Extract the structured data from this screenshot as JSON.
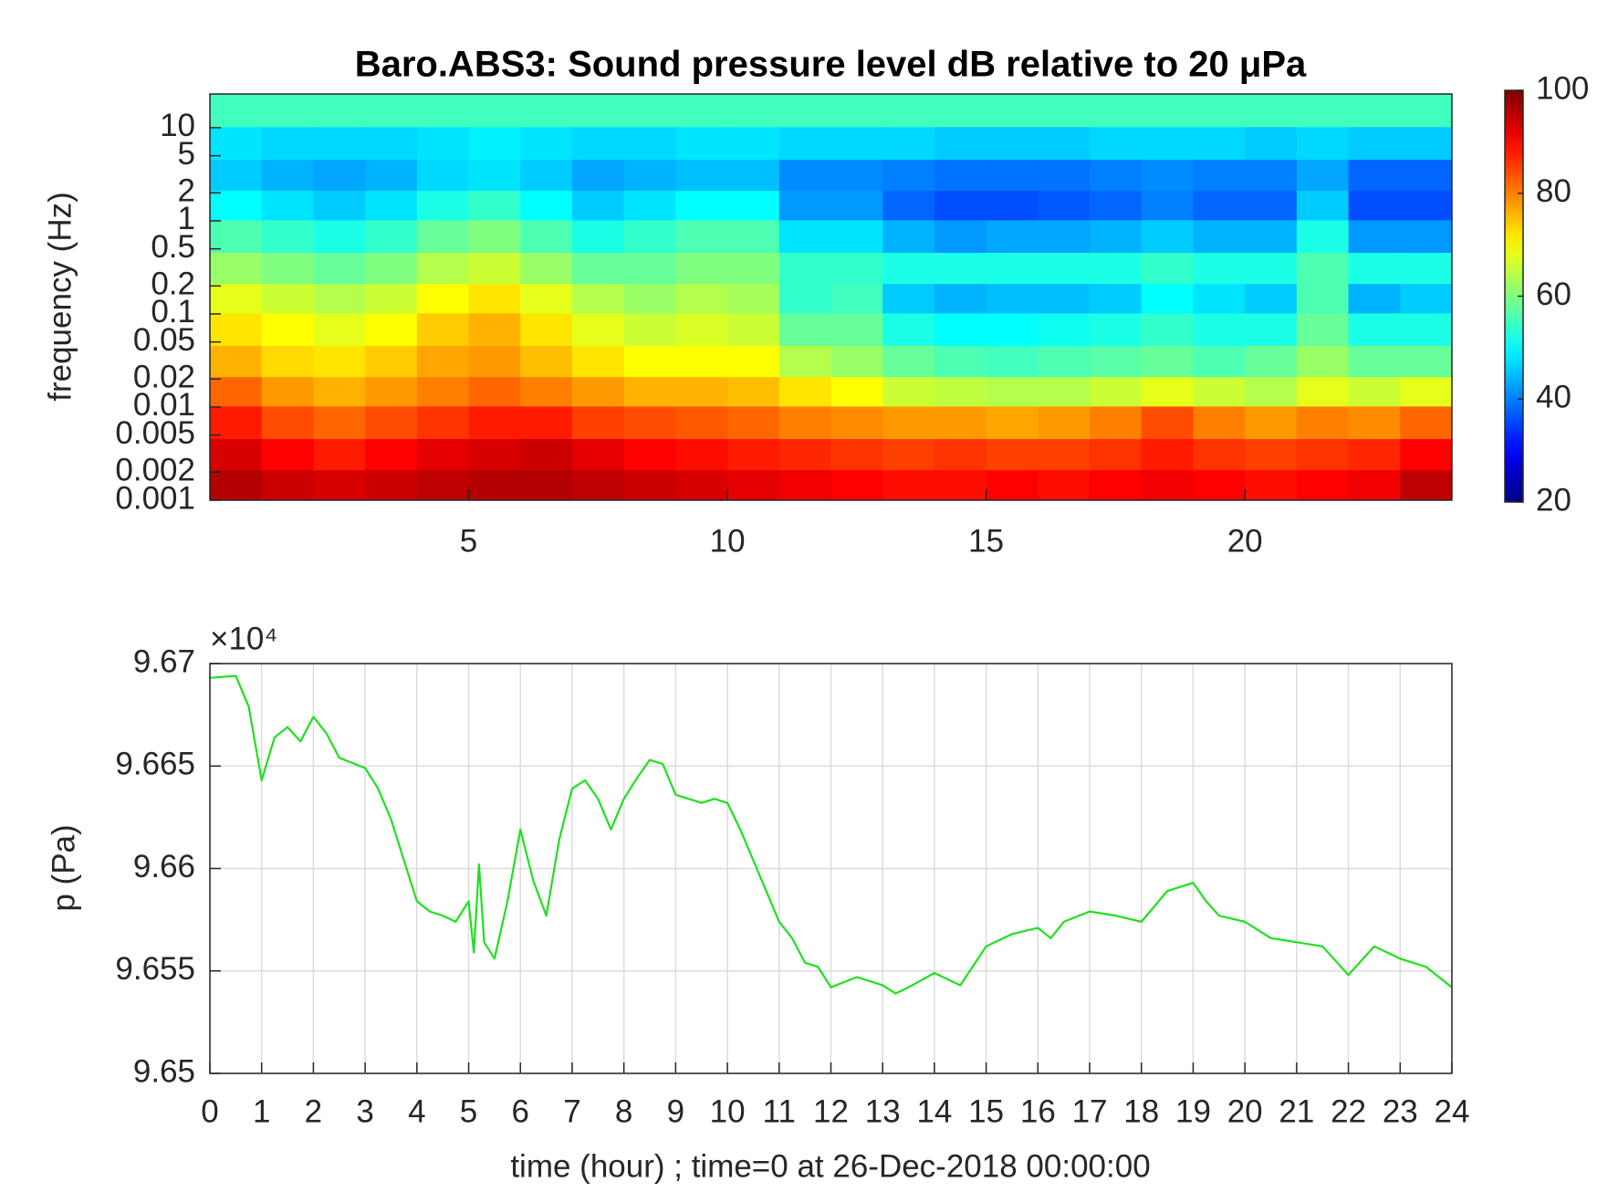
{
  "chart_data": [
    {
      "type": "heatmap",
      "title": "Baro.ABS3: Sound pressure level dB relative to 20 μPa",
      "ylabel": "frequency (Hz)",
      "ylog": true,
      "xlim": [
        0,
        24
      ],
      "xticks": [
        5,
        10,
        15,
        20
      ],
      "ylim": [
        0.001,
        23
      ],
      "yticks": [
        0.001,
        0.002,
        0.005,
        0.01,
        0.02,
        0.05,
        0.1,
        0.2,
        0.5,
        1,
        2,
        5,
        10
      ],
      "colormap": "jet",
      "clim": [
        20,
        100
      ],
      "cticks": [
        20,
        40,
        60,
        80,
        100
      ],
      "x": [
        0.5,
        1.5,
        2.5,
        3.5,
        4.5,
        5.5,
        6.5,
        7.5,
        8.5,
        9.5,
        10.5,
        11.5,
        12.5,
        13.5,
        14.5,
        15.5,
        16.5,
        17.5,
        18.5,
        19.5,
        20.5,
        21.5,
        22.5,
        23.5
      ],
      "y": [
        0.0015,
        0.003,
        0.007,
        0.015,
        0.03,
        0.07,
        0.15,
        0.3,
        0.7,
        1.5,
        3,
        7,
        15
      ],
      "z": [
        [
          96,
          94,
          93,
          94,
          95,
          96,
          96,
          95,
          94,
          93,
          92,
          91,
          90,
          89,
          89,
          90,
          89,
          90,
          91,
          90,
          89,
          90,
          91,
          95
        ],
        [
          93,
          90,
          88,
          90,
          92,
          93,
          94,
          92,
          90,
          89,
          88,
          87,
          86,
          85,
          86,
          85,
          85,
          86,
          88,
          86,
          85,
          86,
          87,
          90
        ],
        [
          88,
          84,
          82,
          84,
          86,
          88,
          88,
          85,
          84,
          83,
          82,
          80,
          79,
          78,
          78,
          77,
          78,
          80,
          84,
          80,
          78,
          80,
          79,
          82
        ],
        [
          82,
          78,
          76,
          78,
          80,
          82,
          80,
          78,
          76,
          76,
          75,
          72,
          70,
          66,
          65,
          64,
          64,
          66,
          68,
          66,
          64,
          68,
          66,
          68
        ],
        [
          76,
          73,
          72,
          74,
          77,
          78,
          75,
          72,
          70,
          70,
          70,
          64,
          62,
          58,
          56,
          55,
          56,
          57,
          58,
          56,
          58,
          62,
          58,
          58
        ],
        [
          72,
          70,
          68,
          70,
          74,
          76,
          72,
          68,
          66,
          67,
          66,
          58,
          58,
          52,
          50,
          50,
          51,
          52,
          54,
          52,
          52,
          58,
          52,
          52
        ],
        [
          68,
          66,
          64,
          66,
          70,
          72,
          68,
          64,
          62,
          64,
          63,
          54,
          55,
          46,
          44,
          45,
          45,
          46,
          50,
          48,
          46,
          56,
          44,
          46
        ],
        [
          62,
          60,
          58,
          60,
          64,
          66,
          62,
          58,
          58,
          60,
          60,
          54,
          54,
          52,
          52,
          52,
          52,
          52,
          54,
          52,
          52,
          56,
          52,
          52
        ],
        [
          56,
          54,
          52,
          54,
          58,
          60,
          56,
          52,
          54,
          56,
          56,
          48,
          48,
          44,
          42,
          43,
          43,
          44,
          46,
          44,
          44,
          52,
          42,
          42
        ],
        [
          50,
          48,
          46,
          48,
          52,
          54,
          50,
          46,
          48,
          50,
          50,
          42,
          42,
          38,
          36,
          36,
          37,
          38,
          40,
          38,
          38,
          46,
          36,
          36
        ],
        [
          46,
          44,
          43,
          44,
          47,
          48,
          46,
          43,
          44,
          45,
          45,
          41,
          41,
          40,
          39,
          39,
          39,
          40,
          41,
          40,
          40,
          43,
          38,
          38
        ],
        [
          48,
          47,
          47,
          47,
          48,
          49,
          48,
          47,
          47,
          48,
          48,
          47,
          47,
          47,
          46,
          46,
          46,
          47,
          47,
          47,
          46,
          47,
          46,
          46
        ],
        [
          55,
          55,
          55,
          55,
          55,
          55,
          55,
          55,
          55,
          55,
          55,
          55,
          55,
          55,
          55,
          55,
          55,
          55,
          55,
          55,
          55,
          55,
          55,
          55
        ]
      ]
    },
    {
      "type": "line",
      "xlabel": "time (hour) ; time=0 at 26-Dec-2018 00:00:00",
      "ylabel": "p (Pa)",
      "y_multiplier": "×10⁴",
      "color": "#1fe01f",
      "grid": true,
      "xlim": [
        0,
        24
      ],
      "xticks": [
        0,
        1,
        2,
        3,
        4,
        5,
        6,
        7,
        8,
        9,
        10,
        11,
        12,
        13,
        14,
        15,
        16,
        17,
        18,
        19,
        20,
        21,
        22,
        23,
        24
      ],
      "ylim": [
        96650,
        96670
      ],
      "yticks": [
        {
          "value": 96650,
          "label": "9.65"
        },
        {
          "value": 96655,
          "label": "9.655"
        },
        {
          "value": 96660,
          "label": "9.66"
        },
        {
          "value": 96665,
          "label": "9.665"
        },
        {
          "value": 96670,
          "label": "9.67"
        }
      ],
      "x": [
        0,
        0.5,
        0.75,
        1,
        1.25,
        1.5,
        1.75,
        2,
        2.25,
        2.5,
        3,
        3.25,
        3.5,
        3.75,
        4,
        4.25,
        4.5,
        4.75,
        5,
        5.1,
        5.2,
        5.3,
        5.5,
        5.75,
        6,
        6.25,
        6.5,
        6.75,
        7,
        7.25,
        7.5,
        7.75,
        8,
        8.25,
        8.5,
        8.75,
        9,
        9.25,
        9.5,
        9.75,
        10,
        10.25,
        10.5,
        10.75,
        11,
        11.25,
        11.5,
        11.75,
        12,
        12.5,
        13,
        13.25,
        13.5,
        14,
        14.5,
        15,
        15.5,
        16,
        16.25,
        16.5,
        17,
        17.5,
        18,
        18.5,
        19,
        19.25,
        19.5,
        20,
        20.5,
        21,
        21.5,
        22,
        22.5,
        23,
        23.5,
        24
      ],
      "values": [
        96669.3,
        96669.4,
        96667.9,
        96664.3,
        96666.4,
        96666.9,
        96666.2,
        96667.4,
        96666.6,
        96665.4,
        96664.9,
        96663.9,
        96662.4,
        96660.4,
        96658.4,
        96657.9,
        96657.7,
        96657.4,
        96658.4,
        96655.9,
        96660.2,
        96656.4,
        96655.6,
        96658.4,
        96661.9,
        96659.4,
        96657.7,
        96661.4,
        96663.9,
        96664.3,
        96663.4,
        96661.9,
        96663.4,
        96664.4,
        96665.3,
        96665.1,
        96663.6,
        96663.4,
        96663.2,
        96663.4,
        96663.2,
        96661.9,
        96660.4,
        96658.9,
        96657.4,
        96656.6,
        96655.4,
        96655.2,
        96654.2,
        96654.7,
        96654.3,
        96653.9,
        96654.2,
        96654.9,
        96654.3,
        96656.2,
        96656.8,
        96657.1,
        96656.6,
        96657.4,
        96657.9,
        96657.7,
        96657.4,
        96658.9,
        96659.3,
        96658.4,
        96657.7,
        96657.4,
        96656.6,
        96656.4,
        96656.2,
        96654.8,
        96656.2,
        96655.6,
        96655.2,
        96654.2
      ]
    }
  ]
}
